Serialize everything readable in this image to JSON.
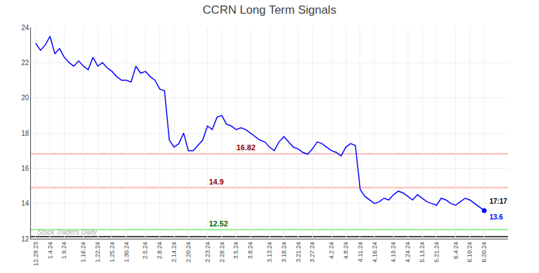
{
  "chart_data": {
    "type": "line",
    "title": "CCRN Long Term Signals",
    "categories": [
      "12.29.23",
      null,
      null,
      "1.4.24",
      null,
      null,
      "1.9.24",
      null,
      null,
      null,
      "1.16.24",
      null,
      null,
      "1.22.24",
      null,
      null,
      "1.25.24",
      null,
      null,
      "1.30.24",
      null,
      null,
      null,
      "2.5.24",
      null,
      null,
      "2.8.24",
      null,
      null,
      "2.14.24",
      null,
      null,
      "2.20.24",
      null,
      null,
      null,
      "2.23.24",
      null,
      null,
      "2.28.24",
      null,
      null,
      "3.5.24",
      null,
      null,
      "3.8.24",
      null,
      null,
      null,
      "3.13.24",
      null,
      null,
      "3.18.24",
      null,
      null,
      "3.21.24",
      null,
      null,
      "3.27.24",
      null,
      null,
      null,
      "4.2.24",
      null,
      null,
      "4.8.24",
      null,
      null,
      "4.11.24",
      null,
      null,
      "4.16.24",
      null,
      null,
      null,
      "4.19.24",
      null,
      null,
      "4.24.24",
      null,
      null,
      "5.13.24",
      null,
      null,
      "5.21.24",
      null,
      null,
      null,
      "6.4.24",
      null,
      null,
      "6.10.24",
      null,
      null,
      "6.20.24"
    ],
    "values": [
      23.1,
      22.7,
      23.0,
      23.5,
      22.5,
      22.8,
      22.3,
      22.0,
      21.8,
      22.1,
      21.8,
      21.6,
      22.3,
      21.8,
      22.0,
      21.7,
      21.5,
      21.2,
      21.0,
      21.0,
      20.9,
      21.8,
      21.4,
      21.5,
      21.2,
      21.0,
      20.5,
      20.4,
      17.6,
      17.2,
      17.4,
      18.0,
      17.0,
      17.0,
      17.3,
      17.6,
      18.4,
      18.2,
      18.9,
      19.0,
      18.5,
      18.4,
      18.2,
      18.3,
      18.2,
      18.0,
      17.8,
      17.6,
      17.5,
      17.2,
      17.0,
      17.5,
      17.8,
      17.5,
      17.2,
      17.1,
      16.9,
      16.8,
      17.1,
      17.5,
      17.4,
      17.2,
      17.0,
      16.9,
      16.7,
      17.2,
      17.4,
      17.3,
      14.8,
      14.4,
      14.2,
      14.0,
      14.1,
      14.3,
      14.2,
      14.5,
      14.7,
      14.6,
      14.4,
      14.2,
      14.5,
      14.3,
      14.1,
      14.0,
      13.9,
      14.3,
      14.2,
      14.0,
      13.9,
      14.1,
      14.3,
      14.2,
      14.0,
      13.8,
      13.6
    ],
    "color": "blue",
    "ylim": [
      12,
      24
    ],
    "yticks": [
      12,
      14,
      16,
      18,
      20,
      22,
      24
    ],
    "grid": true,
    "hlines": [
      {
        "value": 16.82,
        "color": "#ffb3b3",
        "label": "16.82",
        "label_color": "#8b0000"
      },
      {
        "value": 14.9,
        "color": "#ffb3b3",
        "label": "14.9",
        "label_color": "#8b0000"
      },
      {
        "value": 12.52,
        "color": "#90ee90",
        "label": "12.52",
        "label_color": "#006400"
      },
      {
        "value": 12.12,
        "color": "black"
      }
    ],
    "annotations": [
      {
        "text": "17:17",
        "color": "black"
      },
      {
        "text": "13.6",
        "color": "blue"
      },
      {
        "text": "Stock Traders Daily",
        "color": "#aaaaaa"
      }
    ]
  }
}
